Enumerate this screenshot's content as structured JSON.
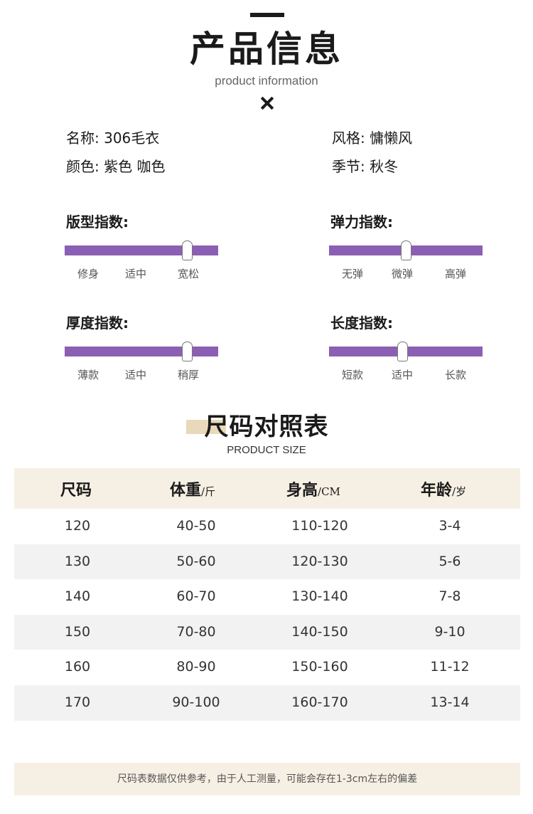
{
  "header": {
    "title": "产品信息",
    "subtitle": "product information"
  },
  "info": {
    "name": "名称: 306毛衣",
    "style": "风格: 慵懒风",
    "color": "颜色: 紫色  咖色",
    "season": "季节: 秋冬"
  },
  "sliders": [
    {
      "title": "版型指数:",
      "labels": [
        "修身",
        "适中",
        "宽松"
      ],
      "value": 0.8
    },
    {
      "title": "弹力指数:",
      "labels": [
        "无弹",
        "微弹",
        "高弹"
      ],
      "value": 0.5
    },
    {
      "title": "厚度指数:",
      "labels": [
        "薄款",
        "适中",
        "稍厚"
      ],
      "value": 0.8
    },
    {
      "title": "长度指数:",
      "labels": [
        "短款",
        "适中",
        "长款"
      ],
      "value": 0.48
    }
  ],
  "size_chart": {
    "title": "尺码对照表",
    "subtitle": "PRODUCT SIZE",
    "headers": [
      {
        "label": "尺码",
        "unit": ""
      },
      {
        "label": "体重",
        "unit": "/斤"
      },
      {
        "label": "身高",
        "unit": "/CM"
      },
      {
        "label": "年龄",
        "unit": "/岁"
      }
    ],
    "rows": [
      [
        "120",
        "40-50",
        "110-120",
        "3-4"
      ],
      [
        "130",
        "50-60",
        "120-130",
        "5-6"
      ],
      [
        "140",
        "60-70",
        "130-140",
        "7-8"
      ],
      [
        "150",
        "70-80",
        "140-150",
        "9-10"
      ],
      [
        "160",
        "80-90",
        "150-160",
        "11-12"
      ],
      [
        "170",
        "90-100",
        "160-170",
        "13-14"
      ]
    ]
  },
  "note": "尺码表数据仅供参考，由于人工测量，可能会存在1-3cm左右的偏差",
  "colors": {
    "accent": "#8b5fb3",
    "beige": "#f6f0e4",
    "row_shade": "#f2f2f2"
  }
}
